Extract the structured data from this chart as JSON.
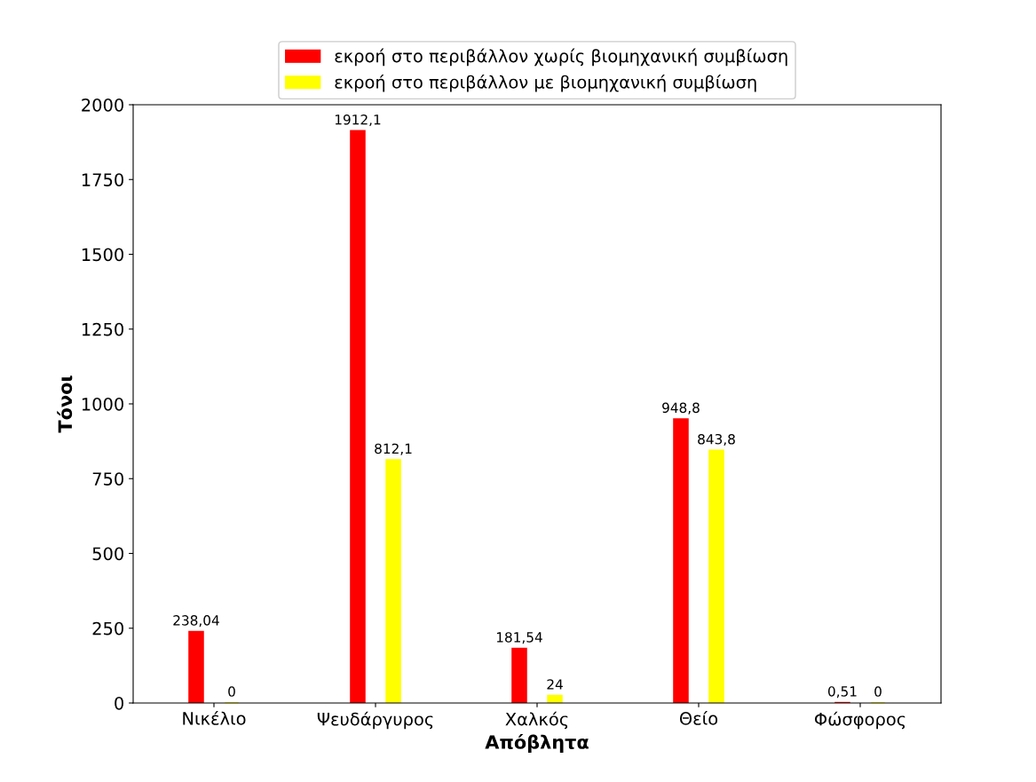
{
  "chart_data": {
    "type": "bar",
    "xlabel": "Απόβλητα",
    "ylabel": "Τόνοι",
    "categories": [
      "Νικέλιο",
      "Ψευδάργυρος",
      "Χαλκός",
      "Θείο",
      "Φώσφορος"
    ],
    "series": [
      {
        "name": "εκροή στο περιβάλλον χωρίς βιομηχανική συμβίωση",
        "color": "#ff0000",
        "values": [
          238.04,
          1912.1,
          181.54,
          948.8,
          0.51
        ],
        "value_labels": [
          "238,04",
          "1912,1",
          "181,54",
          "948,8",
          "0,51"
        ]
      },
      {
        "name": "εκροή στο περιβάλλον με βιομηχανική συμβίωση",
        "color": "#ffff00",
        "values": [
          0,
          812.1,
          24,
          843.8,
          0
        ],
        "value_labels": [
          "0",
          "812,1",
          "24",
          "843,8",
          "0"
        ]
      }
    ],
    "ylim": [
      0,
      2000
    ],
    "yticks": [
      0,
      250,
      500,
      750,
      1000,
      1250,
      1500,
      1750,
      2000
    ],
    "grid": false,
    "legend": "top"
  }
}
